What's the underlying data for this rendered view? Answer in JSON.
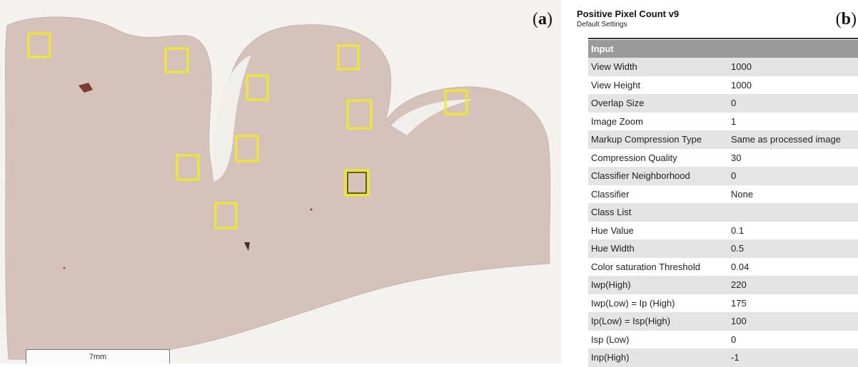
{
  "panel_a": {
    "label": "a",
    "scale_bar_text": "7mm",
    "roi_boxes": [
      {
        "highlight": false
      },
      {
        "highlight": false
      },
      {
        "highlight": false
      },
      {
        "highlight": false
      },
      {
        "highlight": false
      },
      {
        "highlight": false
      },
      {
        "highlight": false
      },
      {
        "highlight": false
      },
      {
        "highlight": false
      },
      {
        "highlight": true
      },
      {
        "highlight": false
      }
    ],
    "colors": {
      "tissue": "#d4c2bb",
      "roi_box": "#f2e82a",
      "roi_box_selected": "#8a7a12"
    }
  },
  "panel_b": {
    "label": "b",
    "title": "Positive Pixel Count v9",
    "subtitle": "Default Settings",
    "table_header": "Input",
    "rows": [
      {
        "name": "View Width",
        "value": "1000"
      },
      {
        "name": "View Height",
        "value": "1000"
      },
      {
        "name": "Overlap Size",
        "value": "0"
      },
      {
        "name": "Image Zoom",
        "value": "1"
      },
      {
        "name": "Markup Compression Type",
        "value": "Same as processed image"
      },
      {
        "name": "Compression Quality",
        "value": "30"
      },
      {
        "name": "Classifier Neighborhood",
        "value": "0"
      },
      {
        "name": "Classifier",
        "value": "None"
      },
      {
        "name": "Class List",
        "value": ""
      },
      {
        "name": "Hue Value",
        "value": "0.1"
      },
      {
        "name": "Hue Width",
        "value": "0.5"
      },
      {
        "name": "Color saturation Threshold",
        "value": "0.04"
      },
      {
        "name": "Iwp(High)",
        "value": "220"
      },
      {
        "name": "Iwp(Low) = Ip (High)",
        "value": "175"
      },
      {
        "name": "Ip(Low) = Isp(High)",
        "value": "100"
      },
      {
        "name": "Isp (Low)",
        "value": "0"
      },
      {
        "name": "Inp(High)",
        "value": "-1"
      }
    ]
  }
}
